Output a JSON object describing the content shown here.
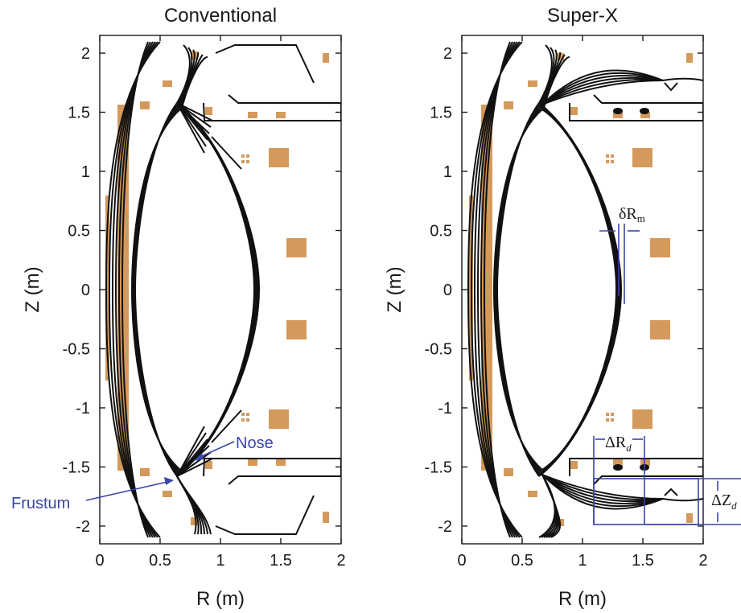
{
  "panels": [
    {
      "id": "conventional",
      "title": "Conventional",
      "xlabel": "R (m)",
      "ylabel": "Z (m)",
      "x_ticks": [
        "0",
        "0.5",
        "1",
        "1.5",
        "2"
      ],
      "y_ticks": [
        "2",
        "1.5",
        "1",
        "0.5",
        "0",
        "-0.5",
        "-1",
        "-1.5",
        "-2"
      ],
      "xlim": [
        0,
        2.0
      ],
      "ylim": [
        -2.15,
        2.15
      ],
      "annotations": [
        {
          "label": "Nose"
        },
        {
          "label": "Frustum"
        }
      ]
    },
    {
      "id": "super-x",
      "title": "Super-X",
      "xlabel": "R (m)",
      "ylabel": "Z (m)",
      "x_ticks": [
        "0",
        "0.5",
        "1",
        "1.5",
        "2"
      ],
      "y_ticks": [
        "2",
        "1.5",
        "1",
        "0.5",
        "0",
        "-0.5",
        "-1",
        "-1.5",
        "-2"
      ],
      "xlim": [
        0,
        2.0
      ],
      "ylim": [
        -2.15,
        2.15
      ],
      "annotations": [
        {
          "label": "δR",
          "sub": "m"
        },
        {
          "label": "ΔR",
          "sub": "d"
        },
        {
          "label": "ΔZ",
          "sub": "d"
        }
      ]
    }
  ],
  "colors": {
    "coils": "#d39a5c",
    "flux_lines": "#111111",
    "annotation": "#3a46a8"
  }
}
